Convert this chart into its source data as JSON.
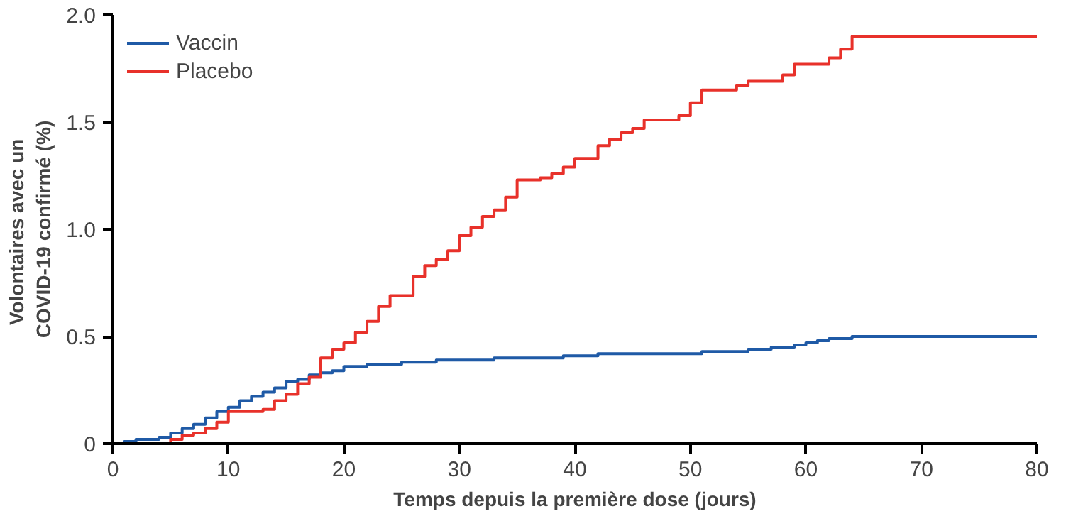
{
  "chart_data": {
    "type": "step",
    "xlabel": "Temps depuis la première dose (jours)",
    "ylabel": "Volontaires  avec un\nCOVID-19 confirmé (%)",
    "xlim": [
      0,
      80
    ],
    "xticks": [
      0,
      10,
      20,
      30,
      40,
      50,
      60,
      70,
      80
    ],
    "ylim": [
      0,
      2.0
    ],
    "yticks": [
      0,
      {
        "value": 0.5,
        "label": "0.5"
      },
      {
        "value": 1.0,
        "label": "1.0"
      },
      {
        "value": 1.5,
        "label": "1.5"
      },
      {
        "value": 2.0,
        "label": "2.0"
      }
    ],
    "grid": false,
    "legend": "top left",
    "series": [
      {
        "name": "Vaccin",
        "color": "#1f5aa6",
        "x": [
          0,
          1,
          2,
          4,
          5,
          6,
          7,
          8,
          9,
          10,
          11,
          12,
          13,
          14,
          15,
          16,
          17,
          18,
          19,
          20,
          22,
          25,
          28,
          33,
          39,
          42,
          51,
          55,
          57,
          59,
          60,
          61,
          62,
          64,
          80
        ],
        "values": [
          0,
          0.01,
          0.02,
          0.03,
          0.05,
          0.07,
          0.09,
          0.12,
          0.15,
          0.17,
          0.2,
          0.22,
          0.24,
          0.26,
          0.29,
          0.3,
          0.32,
          0.33,
          0.34,
          0.36,
          0.37,
          0.38,
          0.39,
          0.4,
          0.41,
          0.42,
          0.43,
          0.44,
          0.45,
          0.46,
          0.47,
          0.48,
          0.49,
          0.5,
          0.5
        ]
      },
      {
        "name": "Placebo",
        "color": "#e8312a",
        "x": [
          0,
          5,
          6,
          7,
          8,
          9,
          10,
          13,
          14,
          15,
          16,
          17,
          18,
          19,
          20,
          21,
          22,
          23,
          24,
          26,
          27,
          28,
          29,
          30,
          31,
          32,
          33,
          34,
          35,
          37,
          38,
          39,
          40,
          42,
          43,
          44,
          45,
          46,
          49,
          50,
          51,
          54,
          55,
          58,
          59,
          62,
          63,
          64,
          80
        ],
        "values": [
          0,
          0.02,
          0.04,
          0.05,
          0.07,
          0.1,
          0.15,
          0.16,
          0.2,
          0.23,
          0.28,
          0.31,
          0.4,
          0.44,
          0.47,
          0.52,
          0.57,
          0.64,
          0.69,
          0.78,
          0.83,
          0.86,
          0.9,
          0.97,
          1.01,
          1.06,
          1.09,
          1.15,
          1.23,
          1.24,
          1.26,
          1.29,
          1.33,
          1.39,
          1.42,
          1.45,
          1.47,
          1.51,
          1.53,
          1.59,
          1.65,
          1.67,
          1.69,
          1.72,
          1.77,
          1.8,
          1.84,
          1.9,
          1.9
        ]
      }
    ]
  }
}
